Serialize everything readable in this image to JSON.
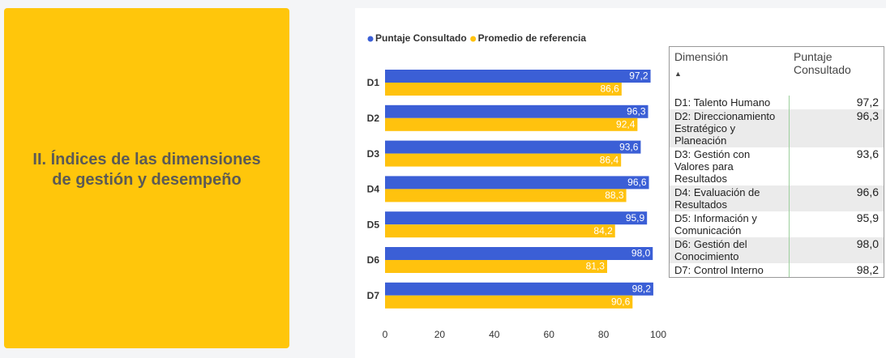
{
  "panel": {
    "title": "II. Índices de las dimensiones de gestión y desempeño"
  },
  "chart_data": {
    "type": "hbar",
    "categories": [
      "D1",
      "D2",
      "D3",
      "D4",
      "D5",
      "D6",
      "D7"
    ],
    "series": [
      {
        "name": "Puntaje Consultado",
        "color": "#3b5fd6",
        "values": [
          97.2,
          96.3,
          93.6,
          96.6,
          95.9,
          98.0,
          98.2
        ],
        "value_labels": [
          "97,2",
          "96,3",
          "93,6",
          "96,6",
          "95,9",
          "98,0",
          "98,2"
        ]
      },
      {
        "name": "Promedio de referencia",
        "color": "#ffc20e",
        "values": [
          86.6,
          92.4,
          86.4,
          88.3,
          84.2,
          81.3,
          90.6
        ],
        "value_labels": [
          "86,6",
          "92,4",
          "86,4",
          "88,3",
          "84,2",
          "81,3",
          "90,6"
        ]
      }
    ],
    "xlim": [
      0,
      100
    ],
    "xticks": [
      0,
      20,
      40,
      60,
      80,
      100
    ],
    "grid": false,
    "legend": "top"
  },
  "table": {
    "header": [
      "Dimensión",
      "Puntaje Consultado"
    ],
    "rows": [
      [
        "D1: Talento Humano",
        "97,2"
      ],
      [
        "D2: Direccionamiento Estratégico y Planeación",
        "96,3"
      ],
      [
        "D3: Gestión con Valores para Resultados",
        "93,6"
      ],
      [
        "D4: Evaluación de Resultados",
        "96,6"
      ],
      [
        "D5: Información y Comunicación",
        "95,9"
      ],
      [
        "D6: Gestión del Conocimiento",
        "98,0"
      ],
      [
        "D7: Control Interno",
        "98,2"
      ]
    ]
  }
}
